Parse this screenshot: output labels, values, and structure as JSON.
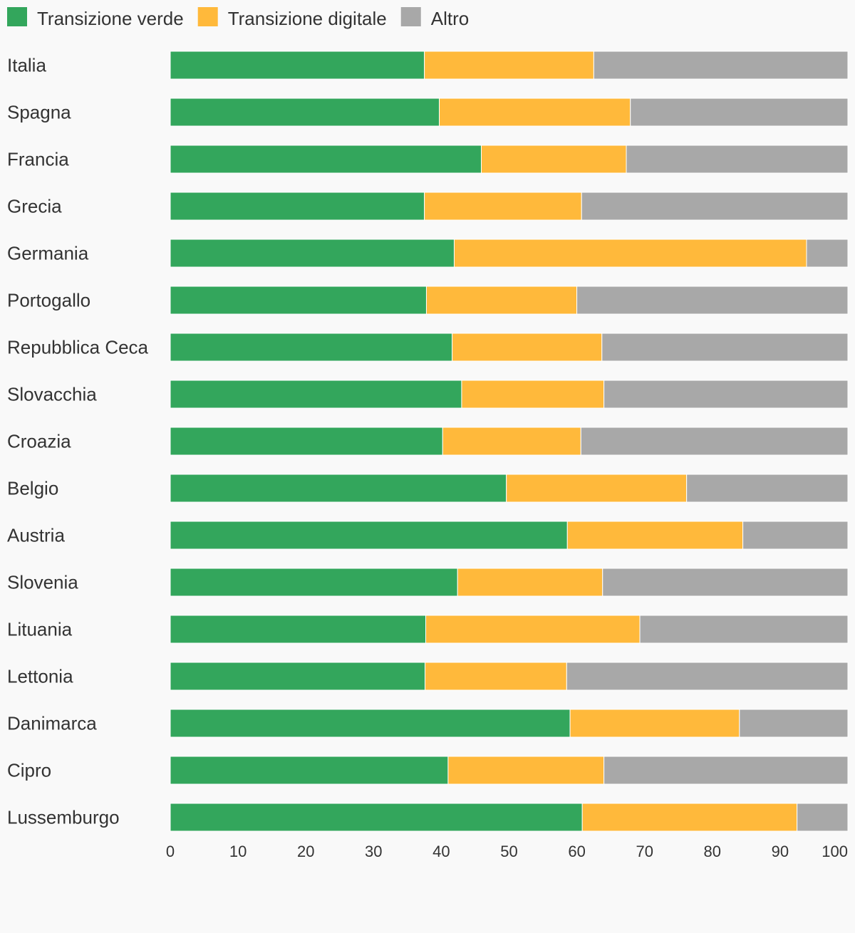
{
  "chart_data": {
    "type": "bar",
    "orientation": "horizontal",
    "stacked": true,
    "categories": [
      "Italia",
      "Spagna",
      "Francia",
      "Grecia",
      "Germania",
      "Portogallo",
      "Repubblica Ceca",
      "Slovacchia",
      "Croazia",
      "Belgio",
      "Austria",
      "Slovenia",
      "Lituania",
      "Lettonia",
      "Danimarca",
      "Cipro",
      "Lussemburgo"
    ],
    "series": [
      {
        "name": "Transizione verde",
        "color": "#33a65c",
        "values": [
          37.5,
          39.7,
          45.9,
          37.5,
          41.9,
          37.8,
          41.6,
          43.0,
          40.2,
          49.6,
          58.6,
          42.4,
          37.7,
          37.6,
          59.0,
          41.0,
          60.8
        ]
      },
      {
        "name": "Transizione digitale",
        "color": "#ffb93b",
        "values": [
          25.0,
          28.2,
          21.4,
          23.2,
          52.0,
          22.2,
          22.1,
          21.0,
          20.4,
          26.6,
          25.9,
          21.4,
          31.6,
          20.9,
          25.0,
          23.0,
          31.7
        ]
      },
      {
        "name": "Altro",
        "color": "#a8a8a8",
        "values": [
          37.5,
          32.1,
          32.7,
          39.3,
          6.1,
          40.0,
          36.3,
          36.0,
          39.4,
          23.8,
          15.5,
          36.2,
          30.7,
          41.5,
          16.0,
          36.0,
          7.5
        ]
      }
    ],
    "xlim": [
      0,
      100
    ],
    "xticks": [
      0,
      10,
      20,
      30,
      40,
      50,
      60,
      70,
      80,
      90,
      100
    ],
    "legend_position": "top-left",
    "grid": false,
    "title": "",
    "xlabel": "",
    "ylabel": ""
  }
}
